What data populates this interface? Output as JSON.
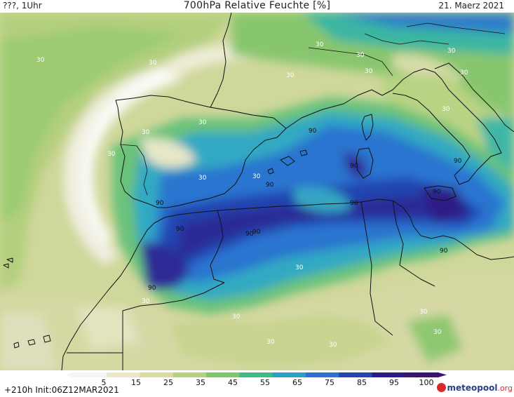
{
  "header": {
    "left": "???, 1Uhr",
    "title": "700hPa Relative Feuchte [%]",
    "date": "21. Maerz 2021"
  },
  "footer": {
    "run_info": "+210h  Init:06Z12MAR2021",
    "brand_main": "meteopool",
    "brand_suffix": ".org"
  },
  "colorbar": {
    "ticks": [
      "5",
      "15",
      "25",
      "35",
      "45",
      "55",
      "65",
      "75",
      "85",
      "95",
      "100"
    ],
    "colors": [
      "#f4f4f4",
      "#ece8c4",
      "#d8dca0",
      "#b6d27e",
      "#7ec86a",
      "#3fbb86",
      "#2aa0c4",
      "#2b73cf",
      "#2445b0",
      "#2d1a86",
      "#3b1370"
    ]
  },
  "contour_labels": [
    {
      "text": "30",
      "color": "#ffffff"
    },
    {
      "text": "90",
      "color": "#111111"
    }
  ],
  "map": {
    "region": "Western Mediterranean / Iberia / North Africa"
  }
}
